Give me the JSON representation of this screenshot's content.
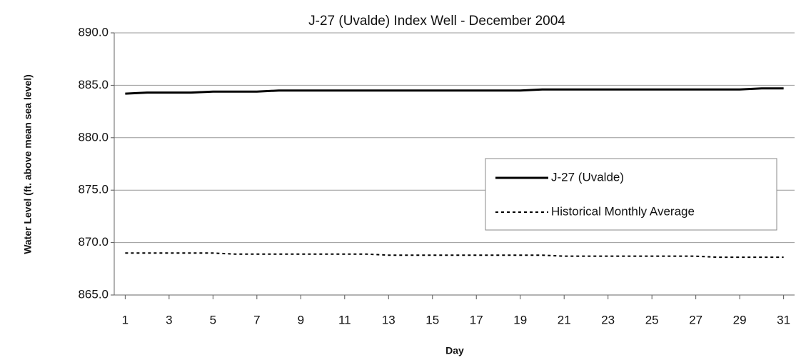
{
  "chart_data": {
    "type": "line",
    "title": "J-27 (Uvalde) Index Well - December 2004",
    "x_label": "Day",
    "y_label": "Water Level (ft. above mean sea level)",
    "x": [
      1,
      2,
      3,
      4,
      5,
      6,
      7,
      8,
      9,
      10,
      11,
      12,
      13,
      14,
      15,
      16,
      17,
      18,
      19,
      20,
      21,
      22,
      23,
      24,
      25,
      26,
      27,
      28,
      29,
      30,
      31
    ],
    "xlim": [
      0.5,
      31.5
    ],
    "xticks": [
      1,
      3,
      5,
      7,
      9,
      11,
      13,
      15,
      17,
      19,
      21,
      23,
      25,
      27,
      29,
      31
    ],
    "ylim": [
      865,
      890
    ],
    "yticks": [
      {
        "value": 865,
        "label": "865.0"
      },
      {
        "value": 870,
        "label": "870.0"
      },
      {
        "value": 875,
        "label": "875.0"
      },
      {
        "value": 880,
        "label": "880.0"
      },
      {
        "value": 885,
        "label": "885.0"
      },
      {
        "value": 890,
        "label": "890.0"
      }
    ],
    "grid": true,
    "legend": "right",
    "series": [
      {
        "name": "J-27 (Uvalde)",
        "color": "#000000",
        "line_style": "solid",
        "values": [
          884.2,
          884.3,
          884.3,
          884.3,
          884.4,
          884.4,
          884.4,
          884.5,
          884.5,
          884.5,
          884.5,
          884.5,
          884.5,
          884.5,
          884.5,
          884.5,
          884.5,
          884.5,
          884.5,
          884.6,
          884.6,
          884.6,
          884.6,
          884.6,
          884.6,
          884.6,
          884.6,
          884.6,
          884.6,
          884.7,
          884.7
        ]
      },
      {
        "name": "Historical Monthly Average",
        "color": "#000000",
        "line_style": "dotted",
        "values": [
          869.0,
          869.0,
          869.0,
          869.0,
          869.0,
          868.9,
          868.9,
          868.9,
          868.9,
          868.9,
          868.9,
          868.9,
          868.8,
          868.8,
          868.8,
          868.8,
          868.8,
          868.8,
          868.8,
          868.8,
          868.7,
          868.7,
          868.7,
          868.7,
          868.7,
          868.7,
          868.7,
          868.6,
          868.6,
          868.6,
          868.6
        ]
      }
    ]
  }
}
